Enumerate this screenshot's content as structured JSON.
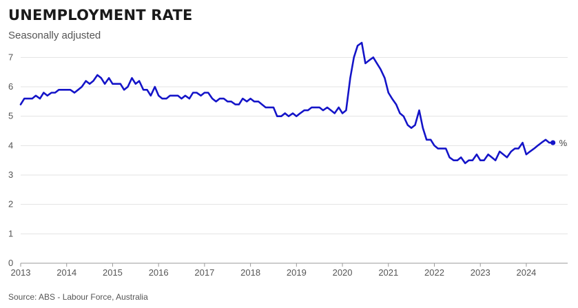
{
  "header": {
    "title": "UNEMPLOYMENT RATE",
    "subtitle": "Seasonally adjusted"
  },
  "footer": {
    "source": "Source: ABS - Labour Force, Australia"
  },
  "colors": {
    "line": "#1414c8",
    "grid": "#e3e3e3"
  },
  "chart_data": {
    "type": "line",
    "title": "UNEMPLOYMENT RATE",
    "subtitle": "Seasonally adjusted",
    "xlabel": "",
    "ylabel": "",
    "unit_label": "%",
    "xlim": [
      2013,
      2024.9
    ],
    "ylim": [
      0,
      7.5
    ],
    "x_ticks": [
      2013,
      2014,
      2015,
      2016,
      2017,
      2018,
      2019,
      2020,
      2021,
      2022,
      2023,
      2024
    ],
    "y_ticks": [
      0,
      1,
      2,
      3,
      4,
      5,
      6,
      7
    ],
    "grid": true,
    "legend": "none",
    "series": [
      {
        "color": "#1414c8",
        "end_marker": true,
        "points": [
          [
            2013.0,
            5.4
          ],
          [
            2013.08,
            5.6
          ],
          [
            2013.17,
            5.6
          ],
          [
            2013.25,
            5.6
          ],
          [
            2013.33,
            5.7
          ],
          [
            2013.42,
            5.6
          ],
          [
            2013.5,
            5.8
          ],
          [
            2013.58,
            5.7
          ],
          [
            2013.67,
            5.8
          ],
          [
            2013.75,
            5.8
          ],
          [
            2013.83,
            5.9
          ],
          [
            2013.92,
            5.9
          ],
          [
            2014.0,
            5.9
          ],
          [
            2014.08,
            5.9
          ],
          [
            2014.17,
            5.8
          ],
          [
            2014.25,
            5.9
          ],
          [
            2014.33,
            6.0
          ],
          [
            2014.42,
            6.2
          ],
          [
            2014.5,
            6.1
          ],
          [
            2014.58,
            6.2
          ],
          [
            2014.67,
            6.4
          ],
          [
            2014.75,
            6.3
          ],
          [
            2014.83,
            6.1
          ],
          [
            2014.92,
            6.3
          ],
          [
            2015.0,
            6.1
          ],
          [
            2015.08,
            6.1
          ],
          [
            2015.17,
            6.1
          ],
          [
            2015.25,
            5.9
          ],
          [
            2015.33,
            6.0
          ],
          [
            2015.42,
            6.3
          ],
          [
            2015.5,
            6.1
          ],
          [
            2015.58,
            6.2
          ],
          [
            2015.67,
            5.9
          ],
          [
            2015.75,
            5.9
          ],
          [
            2015.83,
            5.7
          ],
          [
            2015.92,
            6.0
          ],
          [
            2016.0,
            5.7
          ],
          [
            2016.08,
            5.6
          ],
          [
            2016.17,
            5.6
          ],
          [
            2016.25,
            5.7
          ],
          [
            2016.33,
            5.7
          ],
          [
            2016.42,
            5.7
          ],
          [
            2016.5,
            5.6
          ],
          [
            2016.58,
            5.7
          ],
          [
            2016.67,
            5.6
          ],
          [
            2016.75,
            5.8
          ],
          [
            2016.83,
            5.8
          ],
          [
            2016.92,
            5.7
          ],
          [
            2017.0,
            5.8
          ],
          [
            2017.08,
            5.8
          ],
          [
            2017.17,
            5.6
          ],
          [
            2017.25,
            5.5
          ],
          [
            2017.33,
            5.6
          ],
          [
            2017.42,
            5.6
          ],
          [
            2017.5,
            5.5
          ],
          [
            2017.58,
            5.5
          ],
          [
            2017.67,
            5.4
          ],
          [
            2017.75,
            5.4
          ],
          [
            2017.83,
            5.6
          ],
          [
            2017.92,
            5.5
          ],
          [
            2018.0,
            5.6
          ],
          [
            2018.08,
            5.5
          ],
          [
            2018.17,
            5.5
          ],
          [
            2018.25,
            5.4
          ],
          [
            2018.33,
            5.3
          ],
          [
            2018.42,
            5.3
          ],
          [
            2018.5,
            5.3
          ],
          [
            2018.58,
            5.0
          ],
          [
            2018.67,
            5.0
          ],
          [
            2018.75,
            5.1
          ],
          [
            2018.83,
            5.0
          ],
          [
            2018.92,
            5.1
          ],
          [
            2019.0,
            5.0
          ],
          [
            2019.08,
            5.1
          ],
          [
            2019.17,
            5.2
          ],
          [
            2019.25,
            5.2
          ],
          [
            2019.33,
            5.3
          ],
          [
            2019.42,
            5.3
          ],
          [
            2019.5,
            5.3
          ],
          [
            2019.58,
            5.2
          ],
          [
            2019.67,
            5.3
          ],
          [
            2019.75,
            5.2
          ],
          [
            2019.83,
            5.1
          ],
          [
            2019.92,
            5.3
          ],
          [
            2020.0,
            5.1
          ],
          [
            2020.08,
            5.2
          ],
          [
            2020.17,
            6.3
          ],
          [
            2020.25,
            7.0
          ],
          [
            2020.33,
            7.4
          ],
          [
            2020.42,
            7.5
          ],
          [
            2020.5,
            6.8
          ],
          [
            2020.58,
            6.9
          ],
          [
            2020.67,
            7.0
          ],
          [
            2020.75,
            6.8
          ],
          [
            2020.83,
            6.6
          ],
          [
            2020.92,
            6.3
          ],
          [
            2021.0,
            5.8
          ],
          [
            2021.08,
            5.6
          ],
          [
            2021.17,
            5.4
          ],
          [
            2021.25,
            5.1
          ],
          [
            2021.33,
            5.0
          ],
          [
            2021.42,
            4.7
          ],
          [
            2021.5,
            4.6
          ],
          [
            2021.58,
            4.7
          ],
          [
            2021.67,
            5.2
          ],
          [
            2021.75,
            4.6
          ],
          [
            2021.83,
            4.2
          ],
          [
            2021.92,
            4.2
          ],
          [
            2022.0,
            4.0
          ],
          [
            2022.08,
            3.9
          ],
          [
            2022.17,
            3.9
          ],
          [
            2022.25,
            3.9
          ],
          [
            2022.33,
            3.6
          ],
          [
            2022.42,
            3.5
          ],
          [
            2022.5,
            3.5
          ],
          [
            2022.58,
            3.6
          ],
          [
            2022.67,
            3.4
          ],
          [
            2022.75,
            3.5
          ],
          [
            2022.83,
            3.5
          ],
          [
            2022.92,
            3.7
          ],
          [
            2023.0,
            3.5
          ],
          [
            2023.08,
            3.5
          ],
          [
            2023.17,
            3.7
          ],
          [
            2023.25,
            3.6
          ],
          [
            2023.33,
            3.5
          ],
          [
            2023.42,
            3.8
          ],
          [
            2023.5,
            3.7
          ],
          [
            2023.58,
            3.6
          ],
          [
            2023.67,
            3.8
          ],
          [
            2023.75,
            3.9
          ],
          [
            2023.83,
            3.9
          ],
          [
            2023.92,
            4.1
          ],
          [
            2024.0,
            3.7
          ],
          [
            2024.08,
            3.8
          ],
          [
            2024.17,
            3.9
          ],
          [
            2024.25,
            4.0
          ],
          [
            2024.33,
            4.1
          ],
          [
            2024.42,
            4.2
          ],
          [
            2024.5,
            4.1
          ],
          [
            2024.58,
            4.1
          ]
        ]
      }
    ]
  }
}
